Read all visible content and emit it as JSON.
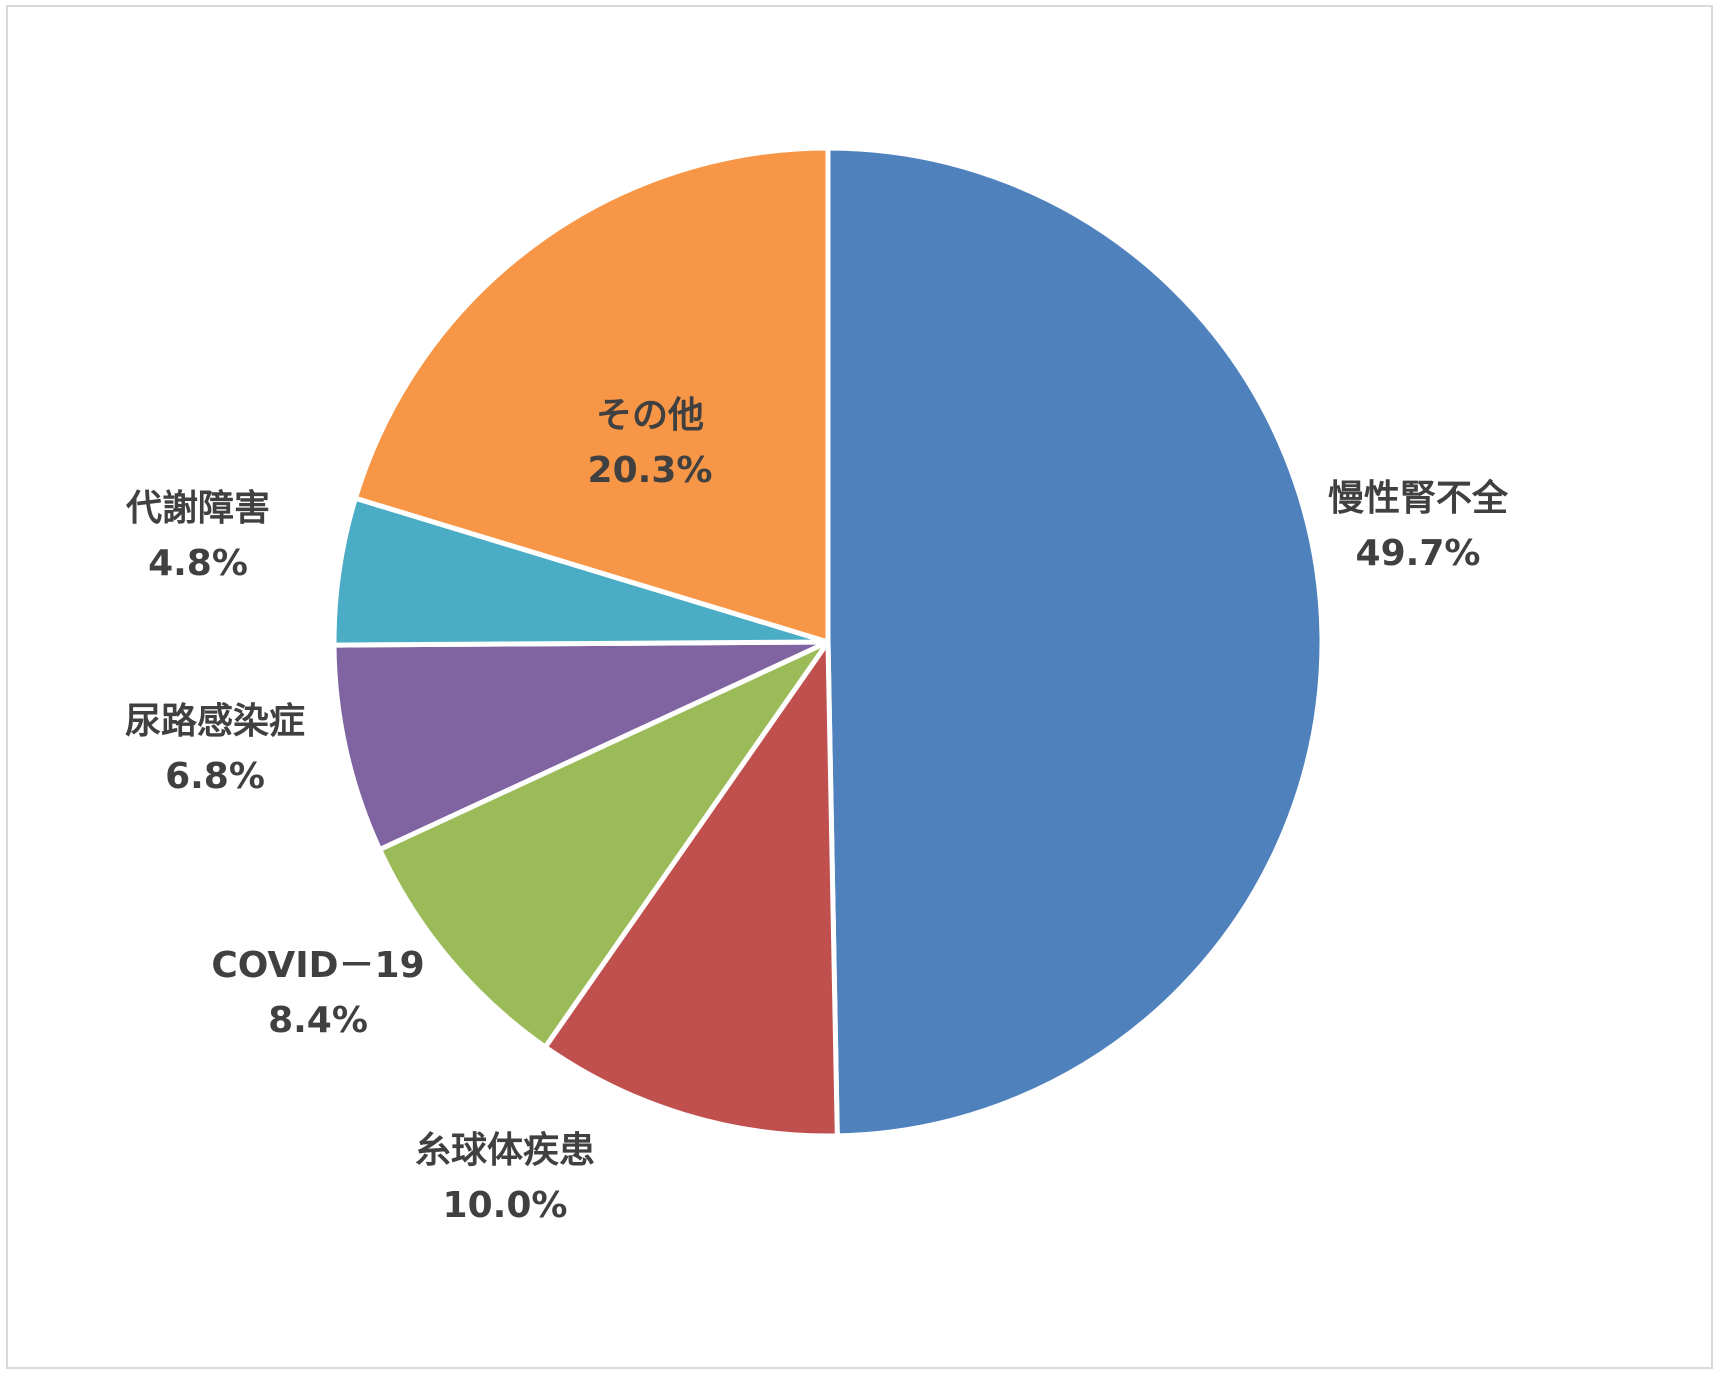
{
  "chart_data": {
    "type": "pie",
    "title": "",
    "start_angle_deg": 0,
    "direction": "clockwise",
    "slices": [
      {
        "name": "慢性腎不全",
        "value": 49.7,
        "label": "49.7%",
        "color": "#4f81bd"
      },
      {
        "name": "糸球体疾患",
        "value": 10.0,
        "label": "10.0%",
        "color": "#c0504d"
      },
      {
        "name": "COVID－19",
        "value": 8.4,
        "label": "8.4%",
        "color": "#9bbb59"
      },
      {
        "name": "尿路感染症",
        "value": 6.8,
        "label": "6.8%",
        "color": "#8064a2"
      },
      {
        "name": "代謝障害",
        "value": 4.8,
        "label": "4.8%",
        "color": "#4bacc6"
      },
      {
        "name": "その他",
        "value": 20.3,
        "label": "20.3%",
        "color": "#f79646"
      }
    ],
    "slice_border_color": "#ffffff",
    "label_color": "#404040",
    "legend": "none"
  }
}
